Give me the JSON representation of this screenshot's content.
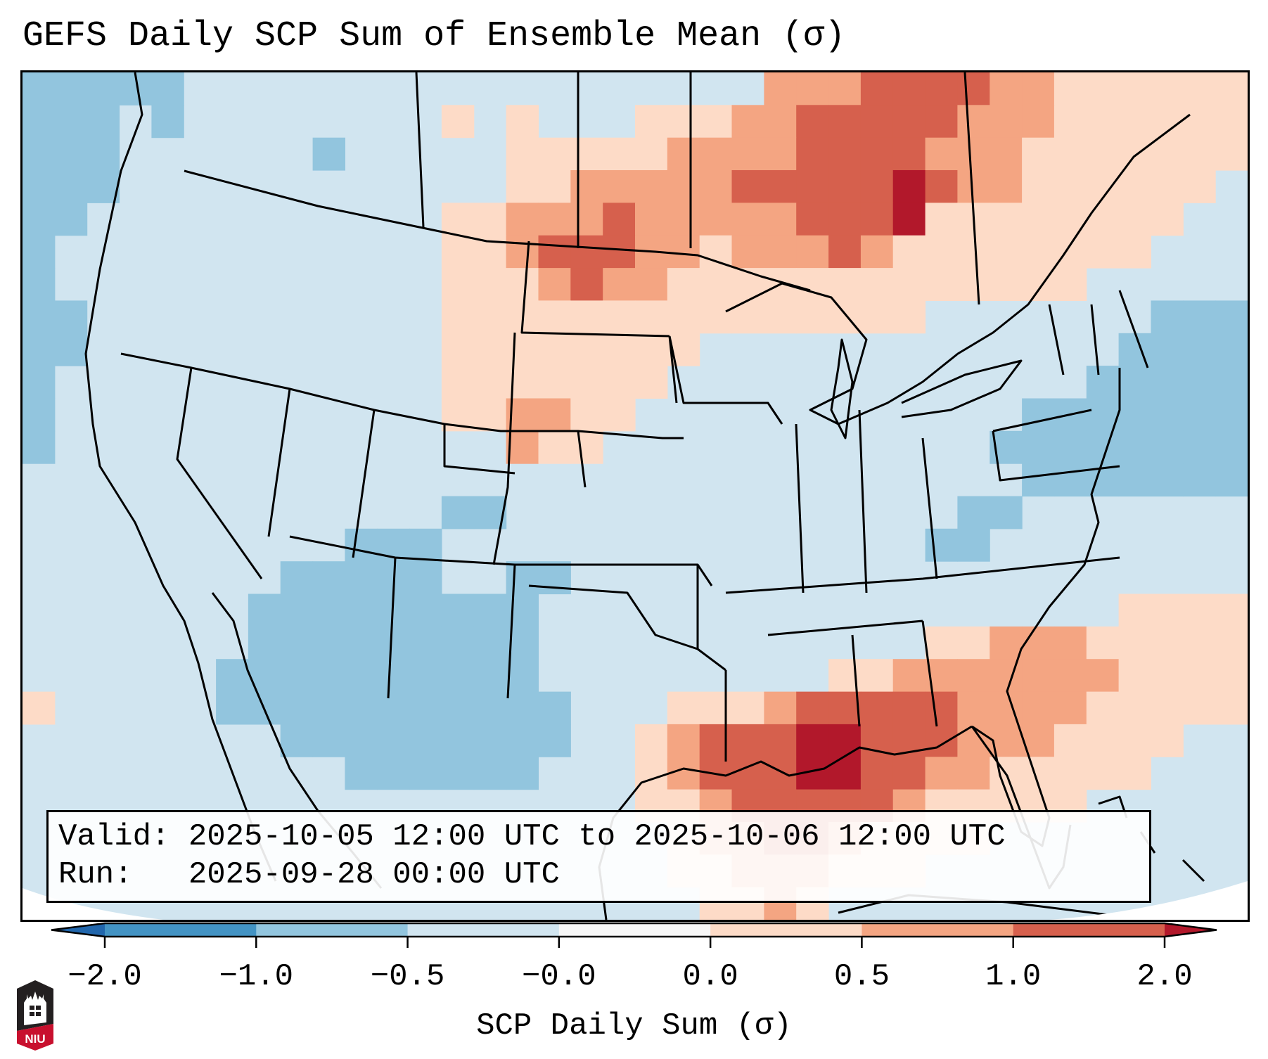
{
  "title": "GEFS Daily SCP Sum of Ensemble Mean (σ)",
  "info_box": {
    "valid_line": "Valid: 2025-10-05 12:00 UTC to 2025-10-06 12:00 UTC",
    "run_line": "Run:   2025-09-28 00:00 UTC"
  },
  "colorbar": {
    "label": "SCP Daily Sum (σ)",
    "ticks": [
      "−2.0",
      "−1.0",
      "−0.5",
      "−0.0",
      "0.0",
      "0.5",
      "1.0",
      "2.0"
    ],
    "bins": [
      {
        "range": "< -2.0",
        "color": "#2166ac"
      },
      {
        "range": "-2.0 to -1.0",
        "color": "#4393c3"
      },
      {
        "range": "-1.0 to -0.5",
        "color": "#92c5de"
      },
      {
        "range": "-0.5 to -0.0",
        "color": "#d1e5f0"
      },
      {
        "range": "-0.0 to 0.0",
        "color": "#f7f7f7"
      },
      {
        "range": "0.0 to 0.5",
        "color": "#fddbc7"
      },
      {
        "range": "0.5 to 1.0",
        "color": "#f4a582"
      },
      {
        "range": "1.0 to 2.0",
        "color": "#d6604d"
      },
      {
        "range": "> 2.0",
        "color": "#b2182b"
      }
    ],
    "extend": "both"
  },
  "logo": {
    "name": "NIU",
    "text": "NIU",
    "colors": {
      "dark": "#231f20",
      "red": "#c8102e"
    }
  },
  "map": {
    "projection": "Lambert Conformal (CONUS)",
    "background_bin": 3,
    "field_note": "Gridded anomaly bins (index into colorbar.bins); rows north to south, cols west to east",
    "grid_rows": 26,
    "grid_cols": 38,
    "grid": [
      "22222333333333333333333666777766555555",
      "22232333333335353335556677777666555555",
      "22233333323333355555666677776665555555",
      "22233333333333355666667777787665555553",
      "22333333333335566676666677785555555533",
      "23333333333335567776656667655555555333",
      "23333333333335556766555555555555533333",
      "22333333333335555555555555553333333222",
      "22333333333335555555533333333333332222",
      "23333333333335555555333333333333322222",
      "23333333333335566553333333333332222222",
      "23333333333333365533333333333322222222",
      "33333333333333333333333333333332222222",
      "33333333333332233333333333333223333333",
      "33333333332223333333333333332233333333",
      "33333333222223322333333333333333333333",
      "33333332222222223333333333333333335555",
      "33333332222222223333333333335566655555",
      "33333322222222223333333335566666665555",
      "53333322222222222333555677777666655555",
      "33333333222222222335677788777666555533",
      "33333333332222223335677788776655555333",
      "33333333333333333335567777765555533333",
      "33333333333333333333566776555533333333",
      "33333333333333333333556665553333333333",
      "33333333333333333333355653333333333333"
    ]
  }
}
